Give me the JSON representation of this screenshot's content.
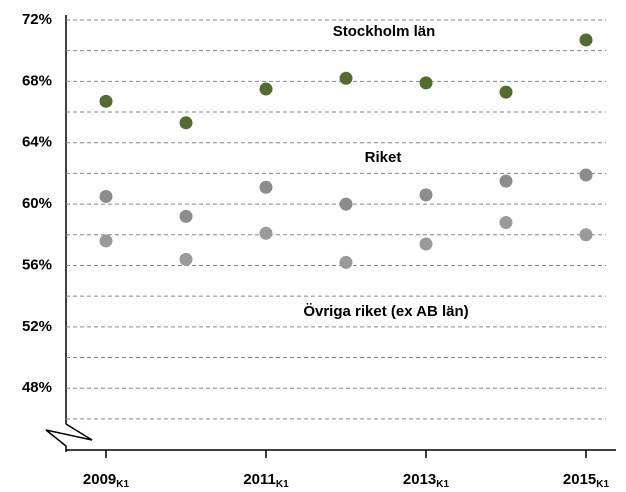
{
  "chart_data": {
    "type": "line",
    "categories": [
      "2009",
      null,
      "2011",
      null,
      "2013",
      null,
      "2015"
    ],
    "category_subscript": "K1",
    "series": [
      {
        "name": "Stockholm län",
        "color": "#556b2f",
        "dashed": false,
        "values": [
          66.7,
          65.3,
          67.5,
          68.2,
          67.9,
          67.3,
          70.7
        ]
      },
      {
        "name": "Riket",
        "color": "#8c8c8c",
        "dashed": false,
        "values": [
          60.5,
          59.2,
          61.1,
          60.0,
          60.6,
          61.5,
          61.9
        ]
      },
      {
        "name": "Övriga riket (ex AB län)",
        "color": "#9a9a9a",
        "dashed": true,
        "values": [
          57.6,
          56.4,
          58.1,
          56.2,
          57.4,
          58.8,
          58.0
        ]
      }
    ],
    "ylim": [
      44,
      72
    ],
    "yticks": [
      {
        "value": 48,
        "label": "48%"
      },
      {
        "value": 52,
        "label": "52%"
      },
      {
        "value": 56,
        "label": "56%"
      },
      {
        "value": 60,
        "label": "60%"
      },
      {
        "value": 64,
        "label": "64%"
      },
      {
        "value": 68,
        "label": "68%"
      },
      {
        "value": 72,
        "label": "72%"
      }
    ],
    "minor_yticks": [
      46,
      50,
      54,
      58,
      62,
      66,
      70
    ],
    "grid": true
  }
}
